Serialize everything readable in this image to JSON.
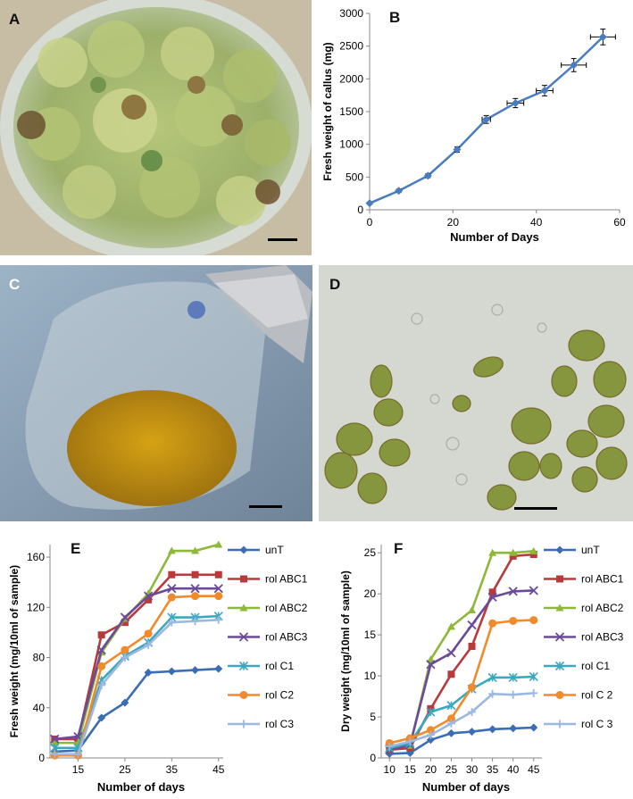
{
  "panels": {
    "a": {
      "letter": "A",
      "description_icon": "callus-in-petri-dish-photo"
    },
    "b": {
      "letter": "B"
    },
    "c": {
      "letter": "C",
      "description_icon": "flask-suspension-culture-photo"
    },
    "d": {
      "letter": "D",
      "description_icon": "micrograph-cells-photo"
    },
    "e": {
      "letter": "E"
    },
    "f": {
      "letter": "F"
    }
  },
  "colors": {
    "unT": "#3a6db5",
    "rol ABC1": "#b83a3a",
    "rol ABC2": "#8db83a",
    "rol ABC3": "#6a4a9a",
    "rol C1": "#3aa8c0",
    "rol C2": "#f08a2a",
    "rol C3": "#9ab8e0",
    "b_line": "#4a7cc0"
  },
  "chart_data": [
    {
      "id": "B",
      "type": "line",
      "title": "",
      "xlabel": "Number of Days",
      "ylabel": "Fresh weight of callus (mg)",
      "xlim": [
        0,
        60
      ],
      "ylim": [
        0,
        3000
      ],
      "xticks": [
        0,
        20,
        40,
        60
      ],
      "yticks": [
        0,
        500,
        1000,
        1500,
        2000,
        2500,
        3000
      ],
      "grid": false,
      "series": [
        {
          "x": [
            0,
            7,
            14,
            21,
            28,
            35,
            42,
            49,
            56
          ],
          "y": [
            100,
            290,
            520,
            920,
            1380,
            1630,
            1820,
            2210,
            2640
          ],
          "yerr": [
            15,
            25,
            30,
            40,
            60,
            70,
            80,
            100,
            120
          ],
          "xerr": [
            0,
            0,
            0,
            0,
            1,
            2,
            2,
            3,
            3
          ]
        }
      ]
    },
    {
      "id": "E",
      "type": "line",
      "title": "",
      "xlabel": "Number of days",
      "ylabel": "Fresh weight (mg/10ml of sample)",
      "xlim": [
        9,
        46
      ],
      "ylim": [
        0,
        170
      ],
      "xticks": [
        15,
        25,
        35,
        45
      ],
      "yticks": [
        0,
        40,
        80,
        120,
        160
      ],
      "legend": "right",
      "grid": false,
      "x": [
        10,
        15,
        20,
        25,
        30,
        35,
        40,
        45
      ],
      "series": [
        {
          "name": "unT",
          "marker": "diamond",
          "values": [
            5,
            6,
            32,
            44,
            68,
            69,
            70,
            71
          ]
        },
        {
          "name": "rol ABC1",
          "marker": "square",
          "values": [
            15,
            15,
            98,
            108,
            126,
            146,
            146,
            146
          ]
        },
        {
          "name": "rol ABC2",
          "marker": "triangle",
          "values": [
            12,
            12,
            84,
            111,
            131,
            165,
            165,
            170
          ]
        },
        {
          "name": "rol ABC3",
          "marker": "x",
          "values": [
            15,
            17,
            86,
            112,
            129,
            135,
            135,
            135
          ]
        },
        {
          "name": "rol C1",
          "marker": "star",
          "values": [
            8,
            8,
            62,
            81,
            92,
            112,
            112,
            113
          ]
        },
        {
          "name": "rol C2",
          "marker": "circle",
          "values": [
            2,
            2,
            73,
            86,
            99,
            128,
            129,
            129
          ]
        },
        {
          "name": "rol C3",
          "marker": "plus",
          "values": [
            3,
            3,
            58,
            80,
            90,
            108,
            109,
            110
          ]
        }
      ],
      "legend_labels": [
        "unT",
        "rol ABC1",
        "rol ABC2",
        "rol ABC3",
        "rol C1",
        "rol C2",
        "rol C3"
      ]
    },
    {
      "id": "F",
      "type": "line",
      "title": "",
      "xlabel": "Number of days",
      "ylabel": "Dry weight (mg/10ml of sample)",
      "xlim": [
        8,
        47
      ],
      "ylim": [
        0,
        26
      ],
      "xticks": [
        10,
        15,
        20,
        25,
        30,
        35,
        40,
        45
      ],
      "yticks": [
        0,
        5,
        10,
        15,
        20,
        25
      ],
      "legend": "right",
      "grid": false,
      "x": [
        10,
        15,
        20,
        25,
        30,
        35,
        40,
        45
      ],
      "series": [
        {
          "name": "unT",
          "marker": "diamond",
          "values": [
            0.5,
            0.6,
            2.2,
            3.0,
            3.2,
            3.5,
            3.6,
            3.7
          ]
        },
        {
          "name": "rol ABC1",
          "marker": "square",
          "values": [
            1.0,
            1.2,
            6.0,
            10.2,
            13.6,
            20.2,
            24.6,
            24.8
          ]
        },
        {
          "name": "rol ABC2",
          "marker": "triangle",
          "values": [
            1.2,
            1.5,
            12.0,
            16.0,
            18.0,
            25.0,
            25.0,
            25.2
          ]
        },
        {
          "name": "rol ABC3",
          "marker": "x",
          "values": [
            1.0,
            1.6,
            11.4,
            12.8,
            16.2,
            19.6,
            20.3,
            20.4
          ]
        },
        {
          "name": "rol C1",
          "marker": "star",
          "values": [
            1.2,
            1.8,
            5.6,
            6.4,
            8.4,
            9.8,
            9.8,
            9.9
          ]
        },
        {
          "name": "rol C2",
          "marker": "circle",
          "values": [
            1.8,
            2.4,
            3.4,
            4.8,
            8.6,
            16.4,
            16.7,
            16.8
          ]
        },
        {
          "name": "rol C3",
          "marker": "plus",
          "values": [
            1.4,
            2.0,
            2.8,
            4.2,
            5.6,
            7.8,
            7.7,
            7.9
          ]
        }
      ],
      "legend_labels": [
        "unT",
        "rol ABC1",
        "rol ABC2",
        "rol ABC3",
        "rol C1",
        "rol C 2",
        "rol C 3"
      ]
    }
  ]
}
